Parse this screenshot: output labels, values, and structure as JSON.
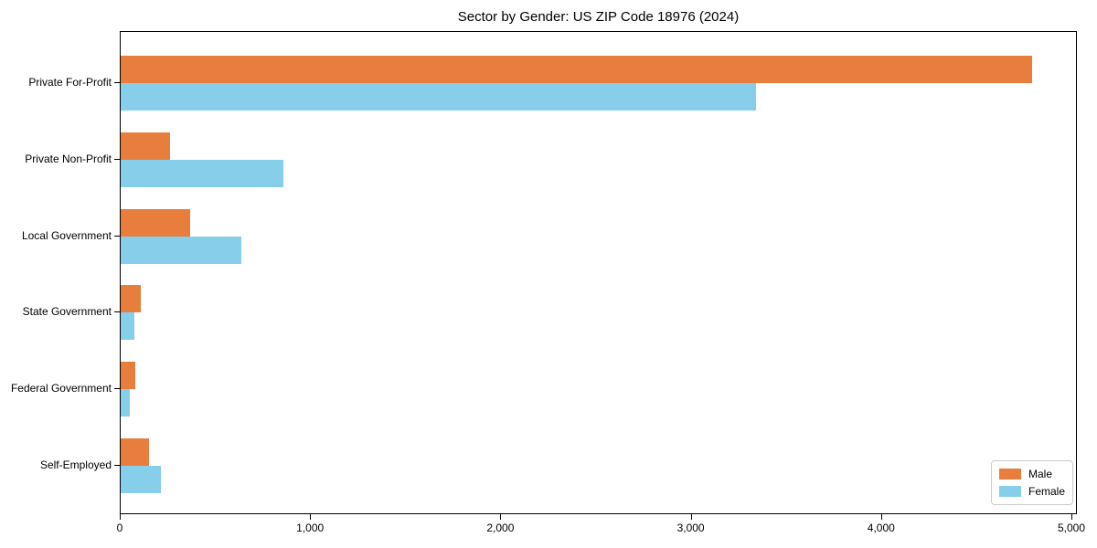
{
  "chart_data": {
    "type": "bar",
    "orientation": "horizontal",
    "title": "Sector by Gender: US ZIP Code 18976 (2024)",
    "xlabel": "",
    "ylabel": "",
    "categories": [
      "Private For-Profit",
      "Private Non-Profit",
      "Local Government",
      "State Government",
      "Federal Government",
      "Self-Employed"
    ],
    "series": [
      {
        "name": "Male",
        "color": "#e87e3e",
        "values": [
          4790,
          260,
          365,
          105,
          75,
          150
        ]
      },
      {
        "name": "Female",
        "color": "#87ceeb",
        "values": [
          3340,
          855,
          635,
          72,
          48,
          210
        ]
      }
    ],
    "xlim": [
      0,
      5030
    ],
    "x_ticks": [
      0,
      1000,
      2000,
      3000,
      4000,
      5000
    ],
    "x_tick_labels": [
      "0",
      "1,000",
      "2,000",
      "3,000",
      "4,000",
      "5,000"
    ],
    "grid": false,
    "legend": {
      "position": "lower right"
    }
  }
}
